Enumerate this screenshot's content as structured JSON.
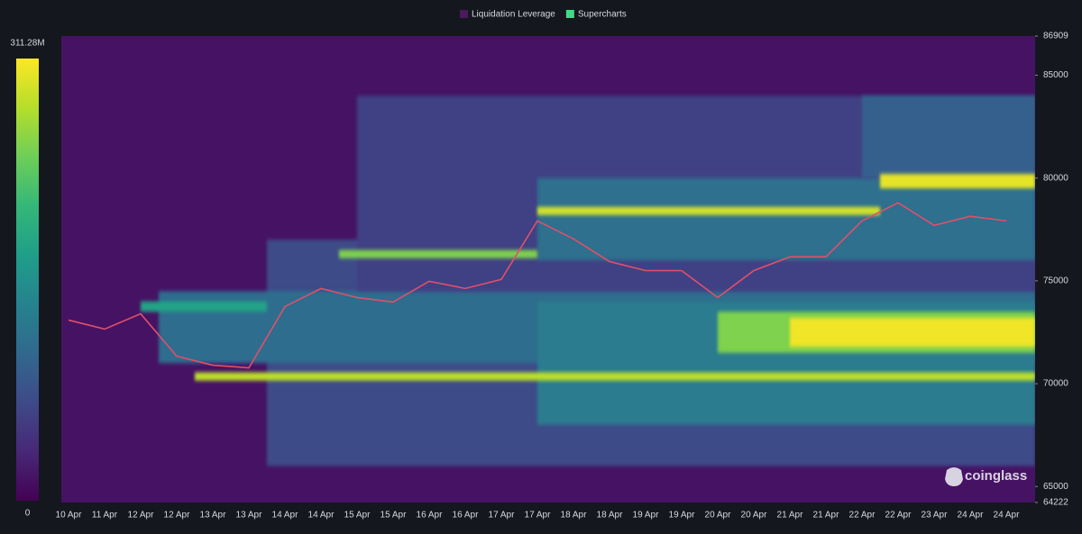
{
  "chart_data": {
    "type": "heatmap",
    "legend": [
      {
        "name": "Liquidation Leverage",
        "color": "#4a1a5c"
      },
      {
        "name": "Supercharts",
        "color": "#3ddc84"
      }
    ],
    "watermark": "coinglass",
    "categories": [
      "10 Apr",
      "11 Apr",
      "12 Apr",
      "12 Apr",
      "13 Apr",
      "13 Apr",
      "14 Apr",
      "14 Apr",
      "15 Apr",
      "15 Apr",
      "16 Apr",
      "16 Apr",
      "17 Apr",
      "17 Apr",
      "18 Apr",
      "18 Apr",
      "19 Apr",
      "19 Apr",
      "20 Apr",
      "20 Apr",
      "21 Apr",
      "21 Apr",
      "22 Apr",
      "22 Apr",
      "23 Apr",
      "24 Apr",
      "24 Apr"
    ],
    "xlim": [
      -0.2,
      26.8
    ],
    "ylim": [
      64222,
      86909
    ],
    "yticks": [
      64222,
      65000,
      70000,
      75000,
      80000,
      85000,
      86909
    ],
    "colorscale": [
      "#440154",
      "#482878",
      "#3e4a89",
      "#31688e",
      "#26828e",
      "#1f9e89",
      "#35b779",
      "#6ece58",
      "#b5de2b",
      "#fde725"
    ],
    "colorbar": {
      "range": [
        0,
        311280000
      ],
      "ticks": [
        {
          "value": 0,
          "label": "0"
        },
        {
          "value": 311280000,
          "label": "311.28M"
        }
      ]
    },
    "bands": [
      {
        "low": 64222,
        "high": 86909,
        "x": [
          -0.2,
          26.8
        ],
        "value": 15000000
      },
      {
        "low": 66000,
        "high": 77000,
        "x": [
          5.5,
          26.8
        ],
        "value": 70000000
      },
      {
        "low": 71000,
        "high": 74500,
        "x": [
          2.5,
          26.8
        ],
        "value": 110000000
      },
      {
        "low": 74500,
        "high": 84000,
        "x": [
          8,
          26.8
        ],
        "value": 60000000
      },
      {
        "low": 68000,
        "high": 74000,
        "x": [
          13,
          26.8
        ],
        "value": 130000000
      },
      {
        "low": 76000,
        "high": 80000,
        "x": [
          13,
          26.8
        ],
        "value": 115000000
      },
      {
        "low": 80000,
        "high": 84000,
        "x": [
          22,
          26.8
        ],
        "value": 95000000
      },
      {
        "low": 73500,
        "high": 74000,
        "x": [
          2,
          5.5
        ],
        "value": 180000000
      },
      {
        "low": 76100,
        "high": 76500,
        "x": [
          7.5,
          13
        ],
        "value": 250000000
      },
      {
        "low": 71500,
        "high": 73500,
        "x": [
          18,
          26.8
        ],
        "value": 250000000
      },
      {
        "low": 71800,
        "high": 73200,
        "x": [
          20,
          26.8
        ],
        "value": 305000000
      },
      {
        "low": 70150,
        "high": 70550,
        "x": [
          3.5,
          26.8
        ],
        "value": 280000000
      },
      {
        "low": 78200,
        "high": 78600,
        "x": [
          13,
          22.5
        ],
        "value": 290000000
      },
      {
        "low": 79500,
        "high": 80200,
        "x": [
          22.5,
          26.8
        ],
        "value": 300000000
      }
    ],
    "price": {
      "name": "Supercharts",
      "color": "#e0506a",
      "values": [
        73093,
        72655,
        73400,
        71340,
        70900,
        70770,
        73750,
        74630,
        74190,
        73970,
        74980,
        74630,
        75070,
        77920,
        77040,
        75940,
        75500,
        75500,
        74190,
        75500,
        76170,
        76170,
        77920,
        78800,
        77700,
        78140,
        77920
      ]
    }
  }
}
